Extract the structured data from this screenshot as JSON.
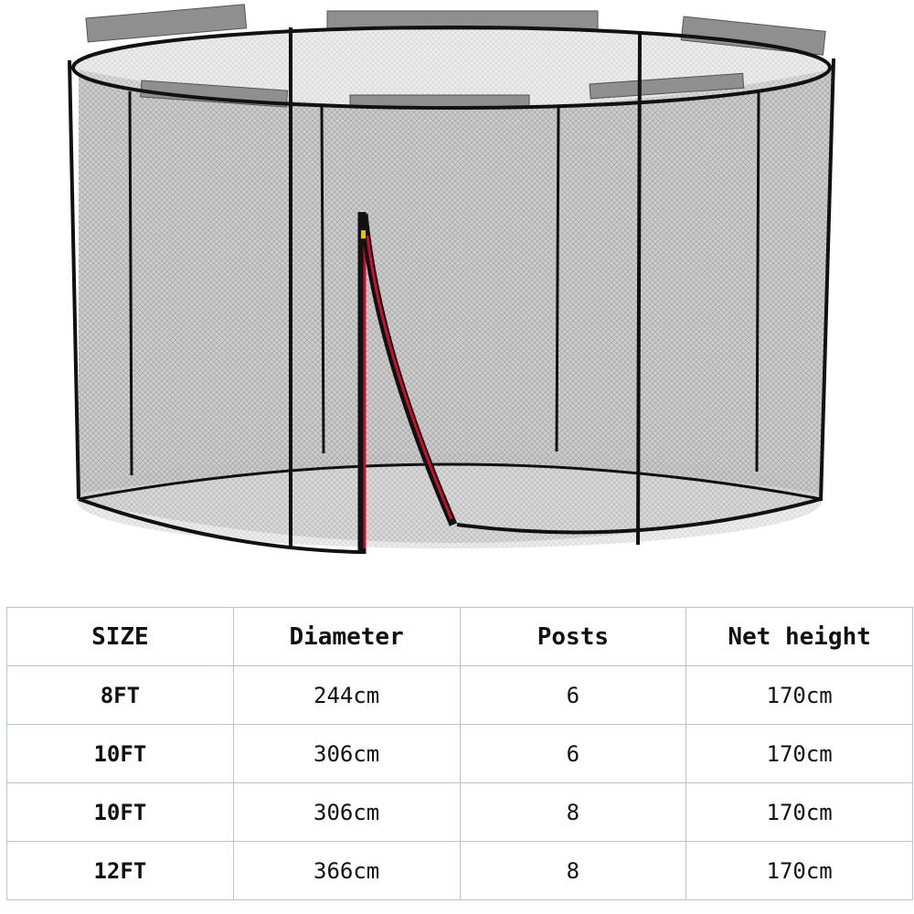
{
  "product": {
    "image_name": "trampoline-safety-net-with-zipper"
  },
  "spec_table": {
    "headers": [
      "SIZE",
      "Diameter",
      "Posts",
      "Net height"
    ],
    "rows": [
      {
        "size": "8FT",
        "diameter": "244cm",
        "posts": "6",
        "net_height": "170cm"
      },
      {
        "size": "10FT",
        "diameter": "306cm",
        "posts": "6",
        "net_height": "170cm"
      },
      {
        "size": "10FT",
        "diameter": "306cm",
        "posts": "8",
        "net_height": "170cm"
      },
      {
        "size": "12FT",
        "diameter": "366cm",
        "posts": "8",
        "net_height": "170cm"
      }
    ]
  },
  "colors": {
    "net": "#b8b8b8",
    "frame": "#111111",
    "zipper": "#c8102e",
    "table_border": "#b9c2cf"
  }
}
